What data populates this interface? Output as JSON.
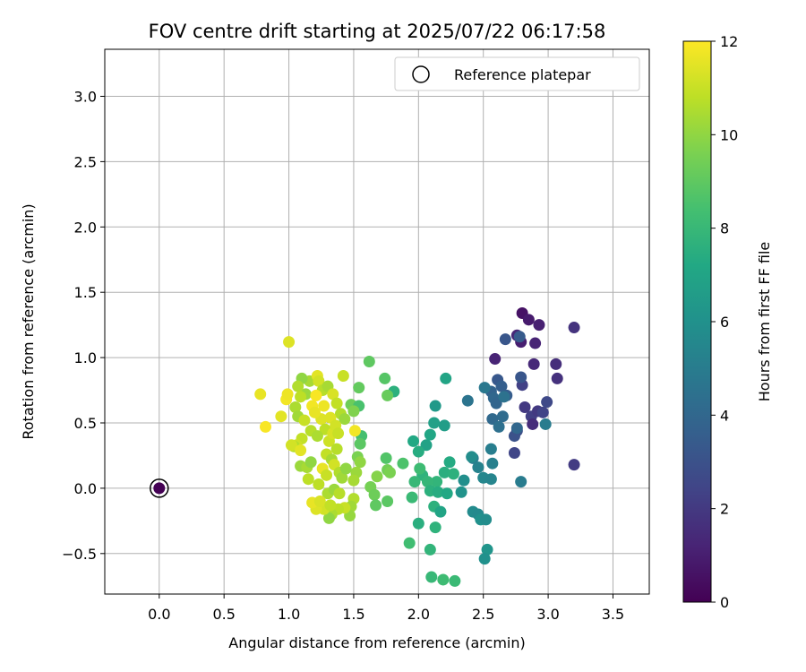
{
  "chart_data": {
    "type": "scatter",
    "title": "FOV centre drift starting at 2025/07/22 06:17:58",
    "xlabel": "Angular distance from reference (arcmin)",
    "ylabel": "Rotation from reference (arcmin)",
    "xlim": [
      -0.42,
      3.78
    ],
    "ylim": [
      -0.81,
      3.36
    ],
    "xticks": [
      0.0,
      0.5,
      1.0,
      1.5,
      2.0,
      2.5,
      3.0,
      3.5
    ],
    "xtick_labels": [
      "0.0",
      "0.5",
      "1.0",
      "1.5",
      "2.0",
      "2.5",
      "3.0",
      "3.5"
    ],
    "yticks": [
      -0.5,
      0.0,
      0.5,
      1.0,
      1.5,
      2.0,
      2.5,
      3.0
    ],
    "ytick_labels": [
      "−0.5",
      "0.0",
      "0.5",
      "1.0",
      "1.5",
      "2.0",
      "2.5",
      "3.0"
    ],
    "grid": true,
    "legend": {
      "position": "top-right",
      "entries": [
        "Reference platepar"
      ]
    },
    "reference_point": {
      "x": 0.0,
      "y": 0.0
    },
    "colorbar": {
      "label": "Hours from first FF file",
      "range": [
        0,
        12
      ],
      "ticks": [
        0,
        2,
        4,
        6,
        8,
        10,
        12
      ],
      "tick_labels": [
        "0",
        "2",
        "4",
        "6",
        "8",
        "10",
        "12"
      ],
      "colormap": "viridis"
    },
    "series": [
      {
        "points": [
          {
            "x": 0.0,
            "y": 0.0,
            "t": 0.0
          },
          {
            "x": 2.8,
            "y": 1.34,
            "t": 0.6
          },
          {
            "x": 2.85,
            "y": 1.29,
            "t": 0.9
          },
          {
            "x": 2.93,
            "y": 1.25,
            "t": 1.1
          },
          {
            "x": 2.76,
            "y": 1.17,
            "t": 1.3
          },
          {
            "x": 2.79,
            "y": 1.12,
            "t": 1.0
          },
          {
            "x": 2.9,
            "y": 1.11,
            "t": 1.2
          },
          {
            "x": 3.2,
            "y": 1.23,
            "t": 1.8
          },
          {
            "x": 2.59,
            "y": 0.99,
            "t": 1.2
          },
          {
            "x": 2.89,
            "y": 0.95,
            "t": 1.4
          },
          {
            "x": 3.06,
            "y": 0.95,
            "t": 1.6
          },
          {
            "x": 3.07,
            "y": 0.84,
            "t": 1.7
          },
          {
            "x": 2.8,
            "y": 0.79,
            "t": 2.3
          },
          {
            "x": 2.82,
            "y": 0.62,
            "t": 2.0
          },
          {
            "x": 2.87,
            "y": 0.55,
            "t": 2.2
          },
          {
            "x": 2.92,
            "y": 0.59,
            "t": 2.0
          },
          {
            "x": 2.96,
            "y": 0.58,
            "t": 2.4
          },
          {
            "x": 2.99,
            "y": 0.66,
            "t": 2.6
          },
          {
            "x": 2.88,
            "y": 0.49,
            "t": 1.5
          },
          {
            "x": 3.2,
            "y": 0.18,
            "t": 2.1
          },
          {
            "x": 2.76,
            "y": 0.44,
            "t": 2.8
          },
          {
            "x": 2.74,
            "y": 0.4,
            "t": 3.0
          },
          {
            "x": 2.74,
            "y": 0.27,
            "t": 2.5
          },
          {
            "x": 2.67,
            "y": 1.14,
            "t": 3.2
          },
          {
            "x": 2.78,
            "y": 1.16,
            "t": 3.4
          },
          {
            "x": 2.79,
            "y": 0.85,
            "t": 3.2
          },
          {
            "x": 2.61,
            "y": 0.83,
            "t": 3.3
          },
          {
            "x": 2.64,
            "y": 0.78,
            "t": 3.6
          },
          {
            "x": 2.68,
            "y": 0.71,
            "t": 3.5
          },
          {
            "x": 2.56,
            "y": 0.74,
            "t": 3.8
          },
          {
            "x": 2.58,
            "y": 0.69,
            "t": 4.0
          },
          {
            "x": 2.6,
            "y": 0.65,
            "t": 3.9
          },
          {
            "x": 2.65,
            "y": 0.55,
            "t": 4.2
          },
          {
            "x": 2.57,
            "y": 0.53,
            "t": 4.1
          },
          {
            "x": 2.62,
            "y": 0.47,
            "t": 4.4
          },
          {
            "x": 2.38,
            "y": 0.67,
            "t": 4.6
          },
          {
            "x": 2.51,
            "y": 0.77,
            "t": 4.8
          },
          {
            "x": 2.66,
            "y": 0.7,
            "t": 4.5
          },
          {
            "x": 2.76,
            "y": 0.46,
            "t": 4.0
          },
          {
            "x": 2.98,
            "y": 0.49,
            "t": 5.0
          },
          {
            "x": 2.56,
            "y": 0.3,
            "t": 5.1
          },
          {
            "x": 2.57,
            "y": 0.19,
            "t": 5.2
          },
          {
            "x": 2.42,
            "y": 0.23,
            "t": 5.0
          },
          {
            "x": 2.46,
            "y": 0.16,
            "t": 5.3
          },
          {
            "x": 2.5,
            "y": 0.08,
            "t": 5.5
          },
          {
            "x": 2.56,
            "y": 0.07,
            "t": 5.4
          },
          {
            "x": 2.79,
            "y": 0.05,
            "t": 5.0
          },
          {
            "x": 2.41,
            "y": 0.24,
            "t": 5.8
          },
          {
            "x": 2.35,
            "y": 0.06,
            "t": 5.9
          },
          {
            "x": 2.33,
            "y": -0.03,
            "t": 6.1
          },
          {
            "x": 2.42,
            "y": -0.18,
            "t": 5.7
          },
          {
            "x": 2.46,
            "y": -0.2,
            "t": 5.6
          },
          {
            "x": 2.48,
            "y": -0.24,
            "t": 6.0
          },
          {
            "x": 2.52,
            "y": -0.24,
            "t": 5.8
          },
          {
            "x": 2.53,
            "y": -0.47,
            "t": 6.2
          },
          {
            "x": 2.51,
            "y": -0.54,
            "t": 6.0
          },
          {
            "x": 2.13,
            "y": 0.63,
            "t": 6.4
          },
          {
            "x": 2.2,
            "y": 0.48,
            "t": 6.6
          },
          {
            "x": 2.12,
            "y": 0.5,
            "t": 6.8
          },
          {
            "x": 2.21,
            "y": 0.84,
            "t": 7.0
          },
          {
            "x": 2.09,
            "y": 0.41,
            "t": 7.1
          },
          {
            "x": 2.06,
            "y": 0.33,
            "t": 6.9
          },
          {
            "x": 1.96,
            "y": 0.36,
            "t": 7.2
          },
          {
            "x": 2.0,
            "y": 0.28,
            "t": 7.4
          },
          {
            "x": 2.24,
            "y": 0.2,
            "t": 7.3
          },
          {
            "x": 2.2,
            "y": 0.12,
            "t": 7.5
          },
          {
            "x": 2.27,
            "y": 0.11,
            "t": 7.6
          },
          {
            "x": 2.14,
            "y": 0.05,
            "t": 7.8
          },
          {
            "x": 2.03,
            "y": 0.1,
            "t": 7.7
          },
          {
            "x": 2.07,
            "y": 0.05,
            "t": 7.9
          },
          {
            "x": 1.97,
            "y": 0.05,
            "t": 8.0
          },
          {
            "x": 2.01,
            "y": 0.15,
            "t": 8.2
          },
          {
            "x": 2.09,
            "y": -0.02,
            "t": 7.6
          },
          {
            "x": 2.15,
            "y": -0.03,
            "t": 7.4
          },
          {
            "x": 2.22,
            "y": -0.04,
            "t": 7.2
          },
          {
            "x": 1.95,
            "y": -0.07,
            "t": 8.1
          },
          {
            "x": 2.12,
            "y": -0.14,
            "t": 7.6
          },
          {
            "x": 2.17,
            "y": -0.18,
            "t": 7.0
          },
          {
            "x": 2.0,
            "y": -0.27,
            "t": 7.5
          },
          {
            "x": 2.13,
            "y": -0.3,
            "t": 7.7
          },
          {
            "x": 1.93,
            "y": -0.42,
            "t": 8.3
          },
          {
            "x": 2.09,
            "y": -0.47,
            "t": 7.8
          },
          {
            "x": 2.1,
            "y": -0.68,
            "t": 8.0
          },
          {
            "x": 2.19,
            "y": -0.7,
            "t": 8.2
          },
          {
            "x": 2.28,
            "y": -0.71,
            "t": 8.1
          },
          {
            "x": 1.88,
            "y": 0.19,
            "t": 8.6
          },
          {
            "x": 1.81,
            "y": 0.74,
            "t": 7.6
          },
          {
            "x": 1.76,
            "y": 0.71,
            "t": 9.2
          },
          {
            "x": 1.74,
            "y": 0.84,
            "t": 8.8
          },
          {
            "x": 1.62,
            "y": 0.97,
            "t": 9.0
          },
          {
            "x": 1.75,
            "y": 0.23,
            "t": 8.7
          },
          {
            "x": 1.76,
            "y": 0.14,
            "t": 9.4
          },
          {
            "x": 1.78,
            "y": 0.12,
            "t": 9.6
          },
          {
            "x": 1.68,
            "y": 0.09,
            "t": 9.8
          },
          {
            "x": 1.63,
            "y": 0.01,
            "t": 9.5
          },
          {
            "x": 1.66,
            "y": -0.05,
            "t": 9.3
          },
          {
            "x": 1.67,
            "y": -0.13,
            "t": 9.0
          },
          {
            "x": 1.76,
            "y": -0.1,
            "t": 8.9
          },
          {
            "x": 1.54,
            "y": 0.77,
            "t": 9.1
          },
          {
            "x": 1.48,
            "y": 0.64,
            "t": 9.3
          },
          {
            "x": 1.54,
            "y": 0.63,
            "t": 8.5
          },
          {
            "x": 1.5,
            "y": 0.59,
            "t": 9.7
          },
          {
            "x": 1.56,
            "y": 0.4,
            "t": 8.4
          },
          {
            "x": 1.55,
            "y": 0.34,
            "t": 8.9
          },
          {
            "x": 1.53,
            "y": 0.24,
            "t": 9.6
          },
          {
            "x": 1.55,
            "y": 0.2,
            "t": 10.0
          },
          {
            "x": 1.52,
            "y": 0.12,
            "t": 10.2
          },
          {
            "x": 1.5,
            "y": 0.06,
            "t": 10.4
          },
          {
            "x": 1.5,
            "y": -0.08,
            "t": 10.6
          },
          {
            "x": 1.48,
            "y": -0.14,
            "t": 10.3
          },
          {
            "x": 1.47,
            "y": -0.21,
            "t": 10.1
          },
          {
            "x": 1.43,
            "y": -0.15,
            "t": 11.0
          },
          {
            "x": 1.38,
            "y": -0.16,
            "t": 10.8
          },
          {
            "x": 1.33,
            "y": -0.2,
            "t": 10.5
          },
          {
            "x": 1.31,
            "y": -0.23,
            "t": 10.0
          },
          {
            "x": 1.27,
            "y": -0.16,
            "t": 11.2
          },
          {
            "x": 1.21,
            "y": -0.16,
            "t": 11.4
          },
          {
            "x": 1.18,
            "y": -0.11,
            "t": 11.6
          },
          {
            "x": 1.13,
            "y": 0.72,
            "t": 10.2
          },
          {
            "x": 1.16,
            "y": 0.82,
            "t": 10.4
          },
          {
            "x": 1.1,
            "y": 0.84,
            "t": 10.0
          },
          {
            "x": 1.07,
            "y": 0.78,
            "t": 10.6
          },
          {
            "x": 1.09,
            "y": 0.7,
            "t": 10.8
          },
          {
            "x": 1.05,
            "y": 0.62,
            "t": 10.5
          },
          {
            "x": 1.07,
            "y": 0.55,
            "t": 10.3
          },
          {
            "x": 1.12,
            "y": 0.52,
            "t": 11.0
          },
          {
            "x": 1.17,
            "y": 0.44,
            "t": 10.7
          },
          {
            "x": 1.1,
            "y": 0.38,
            "t": 10.9
          },
          {
            "x": 1.06,
            "y": 0.33,
            "t": 11.1
          },
          {
            "x": 1.04,
            "y": 0.32,
            "t": 10.6
          },
          {
            "x": 1.09,
            "y": 0.17,
            "t": 10.2
          },
          {
            "x": 1.14,
            "y": 0.16,
            "t": 10.4
          },
          {
            "x": 1.15,
            "y": 0.07,
            "t": 10.8
          },
          {
            "x": 1.17,
            "y": 0.2,
            "t": 10.0
          },
          {
            "x": 1.22,
            "y": 0.86,
            "t": 11.5
          },
          {
            "x": 1.23,
            "y": 0.82,
            "t": 11.2
          },
          {
            "x": 1.26,
            "y": 0.75,
            "t": 10.7
          },
          {
            "x": 1.3,
            "y": 0.78,
            "t": 10.4
          },
          {
            "x": 1.34,
            "y": 0.72,
            "t": 11.3
          },
          {
            "x": 1.37,
            "y": 0.65,
            "t": 10.9
          },
          {
            "x": 1.4,
            "y": 0.57,
            "t": 10.6
          },
          {
            "x": 1.43,
            "y": 0.53,
            "t": 10.2
          },
          {
            "x": 1.42,
            "y": 0.86,
            "t": 11.0
          },
          {
            "x": 1.25,
            "y": 0.53,
            "t": 11.4
          },
          {
            "x": 1.28,
            "y": 0.45,
            "t": 10.8
          },
          {
            "x": 1.22,
            "y": 0.4,
            "t": 10.5
          },
          {
            "x": 1.31,
            "y": 0.36,
            "t": 11.1
          },
          {
            "x": 1.34,
            "y": 0.42,
            "t": 11.3
          },
          {
            "x": 1.37,
            "y": 0.3,
            "t": 10.7
          },
          {
            "x": 1.29,
            "y": 0.26,
            "t": 10.9
          },
          {
            "x": 1.33,
            "y": 0.22,
            "t": 10.4
          },
          {
            "x": 1.35,
            "y": 0.18,
            "t": 11.2
          },
          {
            "x": 1.39,
            "y": 0.12,
            "t": 10.6
          },
          {
            "x": 1.41,
            "y": 0.08,
            "t": 10.3
          },
          {
            "x": 1.44,
            "y": 0.15,
            "t": 10.0
          },
          {
            "x": 1.26,
            "y": 0.15,
            "t": 11.6
          },
          {
            "x": 1.29,
            "y": 0.1,
            "t": 11.0
          },
          {
            "x": 1.23,
            "y": 0.03,
            "t": 10.8
          },
          {
            "x": 1.3,
            "y": -0.04,
            "t": 10.5
          },
          {
            "x": 1.35,
            "y": -0.01,
            "t": 10.2
          },
          {
            "x": 1.39,
            "y": -0.04,
            "t": 10.7
          },
          {
            "x": 1.24,
            "y": -0.1,
            "t": 11.3
          },
          {
            "x": 1.32,
            "y": -0.13,
            "t": 10.9
          },
          {
            "x": 0.78,
            "y": 0.72,
            "t": 11.6
          },
          {
            "x": 0.98,
            "y": 0.68,
            "t": 11.8
          },
          {
            "x": 0.94,
            "y": 0.55,
            "t": 11.5
          },
          {
            "x": 0.99,
            "y": 0.72,
            "t": 11.7
          },
          {
            "x": 1.0,
            "y": 1.12,
            "t": 11.4
          },
          {
            "x": 0.82,
            "y": 0.47,
            "t": 11.9
          },
          {
            "x": 1.02,
            "y": 0.33,
            "t": 11.2
          },
          {
            "x": 1.09,
            "y": 0.29,
            "t": 11.5
          },
          {
            "x": 1.18,
            "y": 0.63,
            "t": 11.8
          },
          {
            "x": 1.2,
            "y": 0.58,
            "t": 11.6
          },
          {
            "x": 1.21,
            "y": 0.71,
            "t": 11.9
          },
          {
            "x": 1.27,
            "y": 0.63,
            "t": 11.7
          },
          {
            "x": 1.32,
            "y": 0.54,
            "t": 11.4
          },
          {
            "x": 1.36,
            "y": 0.48,
            "t": 11.2
          },
          {
            "x": 1.38,
            "y": 0.42,
            "t": 11.0
          },
          {
            "x": 1.51,
            "y": 0.44,
            "t": 11.8
          }
        ]
      }
    ]
  }
}
